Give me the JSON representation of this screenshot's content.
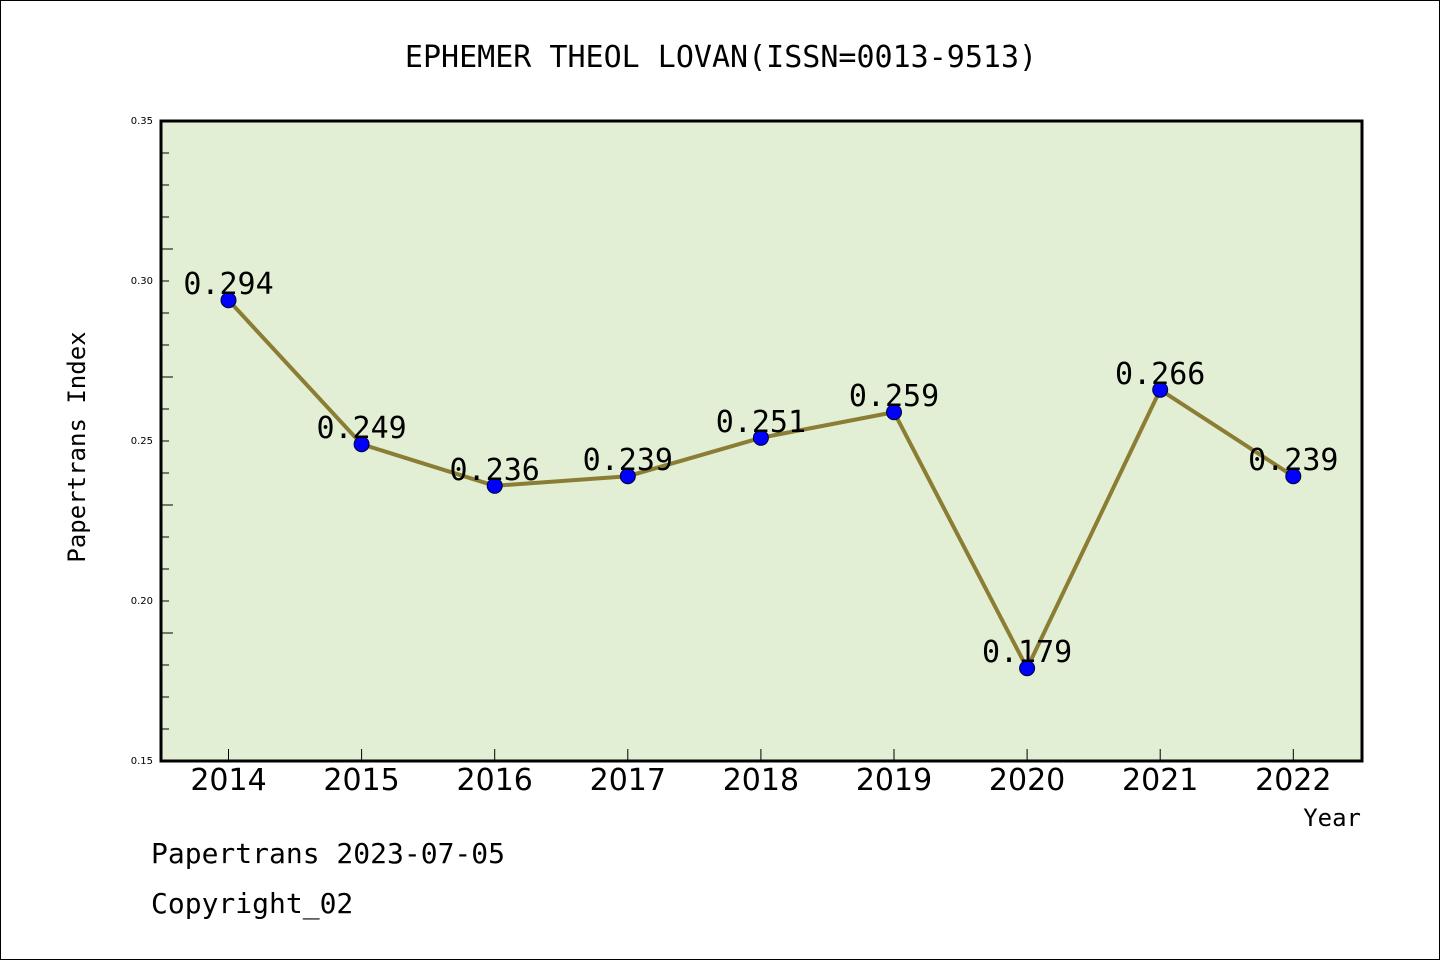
{
  "chart_data": {
    "type": "line",
    "title": "EPHEMER THEOL LOVAN(ISSN=0013-9513)",
    "xlabel": "Year",
    "ylabel": "Papertrans Index",
    "categories": [
      "2014",
      "2015",
      "2016",
      "2017",
      "2018",
      "2019",
      "2020",
      "2021",
      "2022"
    ],
    "values": [
      0.294,
      0.249,
      0.236,
      0.239,
      0.251,
      0.259,
      0.179,
      0.266,
      0.239
    ],
    "data_labels": [
      "0.294",
      "0.249",
      "0.236",
      "0.239",
      "0.251",
      "0.259",
      "0.179",
      "0.266",
      "0.239"
    ],
    "ylim": [
      0.15,
      0.35
    ],
    "yticks": [
      "0.15",
      "0.20",
      "0.25",
      "0.30",
      "0.35"
    ],
    "grid": false,
    "colors": {
      "plot_bg": "#e2efd5",
      "line": "#8b7d33",
      "marker": "#0000ff"
    }
  },
  "footer": {
    "date_line": "Papertrans 2023-07-05",
    "copyright": "Copyright_02"
  }
}
